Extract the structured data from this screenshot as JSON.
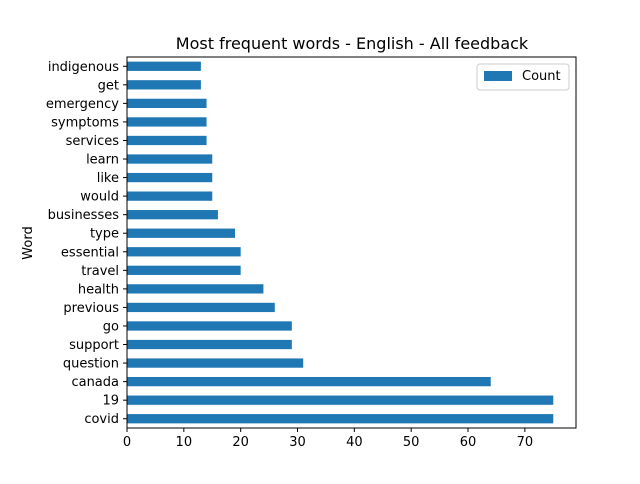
{
  "chart_data": {
    "type": "bar",
    "orientation": "horizontal",
    "title": "Most frequent words - English - All feedback",
    "xlabel": "",
    "ylabel": "Word",
    "categories": [
      "covid",
      "19",
      "canada",
      "question",
      "support",
      "go",
      "previous",
      "health",
      "travel",
      "essential",
      "type",
      "businesses",
      "would",
      "like",
      "learn",
      "services",
      "symptoms",
      "emergency",
      "get",
      "indigenous"
    ],
    "series": [
      {
        "name": "Count",
        "values": [
          75,
          75,
          64,
          31,
          29,
          29,
          26,
          24,
          20,
          20,
          19,
          16,
          15,
          15,
          15,
          14,
          14,
          14,
          13,
          13
        ]
      }
    ],
    "xlim": [
      0,
      79
    ],
    "xticks": [
      0,
      10,
      20,
      30,
      40,
      50,
      60,
      70
    ],
    "grid": false,
    "legend_position": "top-right",
    "bar_color": "#1f77b4"
  }
}
